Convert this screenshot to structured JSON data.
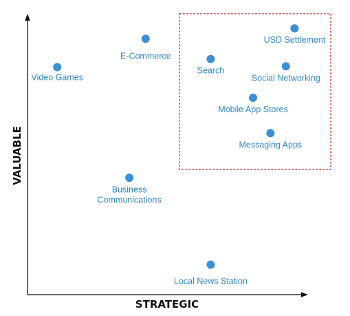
{
  "colors": {
    "point": "#3d8fd4",
    "label": "#2f86cf",
    "axis": "#111111",
    "highlight": "#d62828"
  },
  "chart_data": {
    "type": "scatter",
    "title": "",
    "xlabel": "STRATEGIC",
    "ylabel": "VALUABLE",
    "xlim": [
      0,
      100
    ],
    "ylim": [
      0,
      100
    ],
    "grid": false,
    "points": [
      {
        "label": "Video Games",
        "x": 10.6,
        "y": 81.0
      },
      {
        "label": "E-Commerce",
        "x": 42.1,
        "y": 91.1
      },
      {
        "label": "Search",
        "x": 65.3,
        "y": 83.9
      },
      {
        "label": "USD Settlement",
        "x": 95.2,
        "y": 94.8
      },
      {
        "label": "Social Networking",
        "x": 92.1,
        "y": 81.3
      },
      {
        "label": "Mobile App Stores",
        "x": 80.4,
        "y": 70.1
      },
      {
        "label": "Messaging Apps",
        "x": 86.6,
        "y": 57.5
      },
      {
        "label": "Business Communications",
        "x": 36.3,
        "y": 41.6
      },
      {
        "label": "Local News Station",
        "x": 65.3,
        "y": 10.7
      }
    ],
    "highlight_region": {
      "x": [
        54.2,
        100
      ],
      "y": [
        44.6,
        100
      ]
    }
  }
}
